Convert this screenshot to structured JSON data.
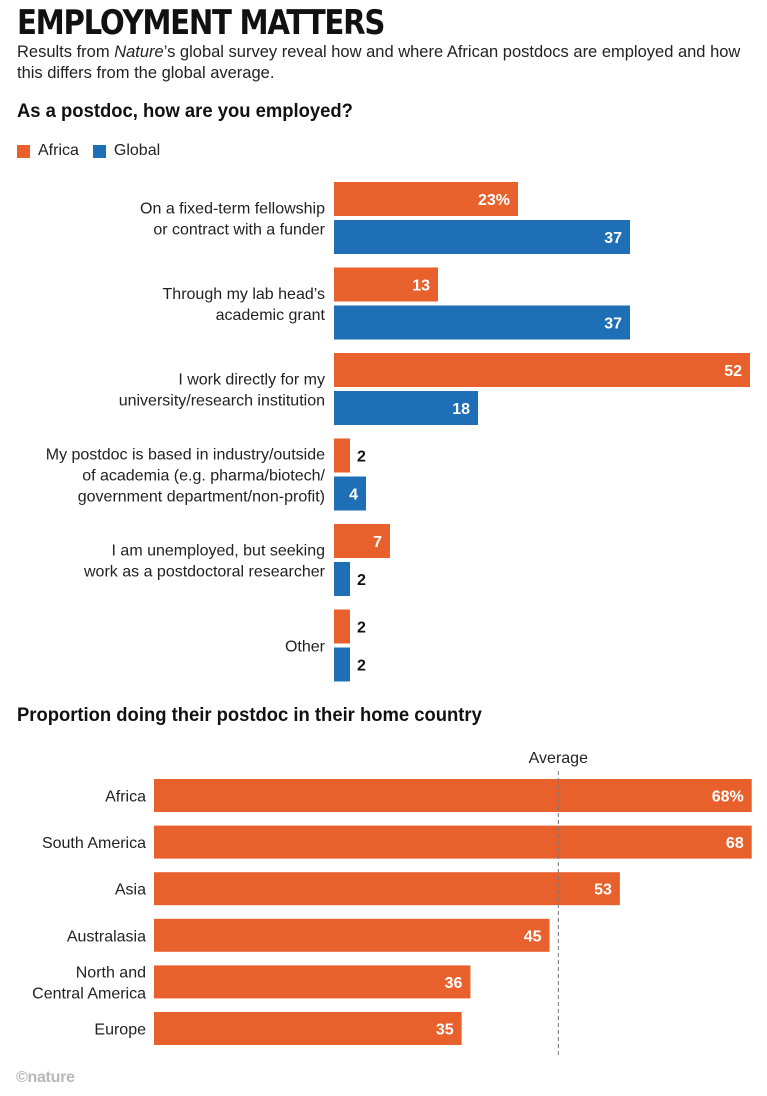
{
  "header": {
    "title": "EMPLOYMENT MATTERS",
    "standfirst_before": "Results from ",
    "standfirst_pub": "Nature",
    "standfirst_after": "’s global survey reveal how and where African postdocs are employed and how this differs from the global average."
  },
  "credit": "©nature",
  "colors": {
    "africa": "#e8602c",
    "global": "#1e6fb5",
    "bar_label": "#ffffff",
    "outside_label": "#111111",
    "average_line": "#777777"
  },
  "chart_data": [
    {
      "type": "bar",
      "orientation": "horizontal",
      "title": "As a postdoc, how are you employed?",
      "unit": "%",
      "legend": {
        "placement": "top-left",
        "entries": [
          "Africa",
          "Global"
        ]
      },
      "categories": [
        "On a fixed-term fellowship or contract with a funder",
        "Through my lab head’s academic grant",
        "I work directly for my university/research institution",
        "My postdoc is based in industry/outside of academia (e.g. pharma/biotech/ government department/non-profit)",
        "I am unemployed, but seeking work as a postdoctoral researcher",
        "Other"
      ],
      "category_lines": [
        [
          "On a fixed-term fellowship",
          "or contract with a funder"
        ],
        [
          "Through my lab head’s",
          "academic grant"
        ],
        [
          "I work directly for my",
          "university/research institution"
        ],
        [
          "My postdoc is based in industry/outside",
          "of academia (e.g. pharma/biotech/",
          "government department/non-profit)"
        ],
        [
          "I am unemployed, but seeking",
          "work as a postdoctoral researcher"
        ],
        [
          "Other"
        ]
      ],
      "series": [
        {
          "name": "Africa",
          "values": [
            23,
            13,
            52,
            2,
            7,
            2
          ]
        },
        {
          "name": "Global",
          "values": [
            37,
            37,
            18,
            4,
            2,
            2
          ]
        }
      ],
      "grid": false
    },
    {
      "type": "bar",
      "orientation": "horizontal",
      "title": "Proportion doing their postdoc in their home country",
      "unit": "%",
      "categories": [
        "Africa",
        "South America",
        "Asia",
        "Australasia",
        "North and Central America",
        "Europe"
      ],
      "category_lines": [
        [
          "Africa"
        ],
        [
          "South America"
        ],
        [
          "Asia"
        ],
        [
          "Australasia"
        ],
        [
          "North and",
          "Central America"
        ],
        [
          "Europe"
        ]
      ],
      "values": [
        68,
        68,
        53,
        45,
        36,
        35
      ],
      "reference_line": {
        "label": "Average",
        "value": 46
      },
      "grid": false
    }
  ]
}
